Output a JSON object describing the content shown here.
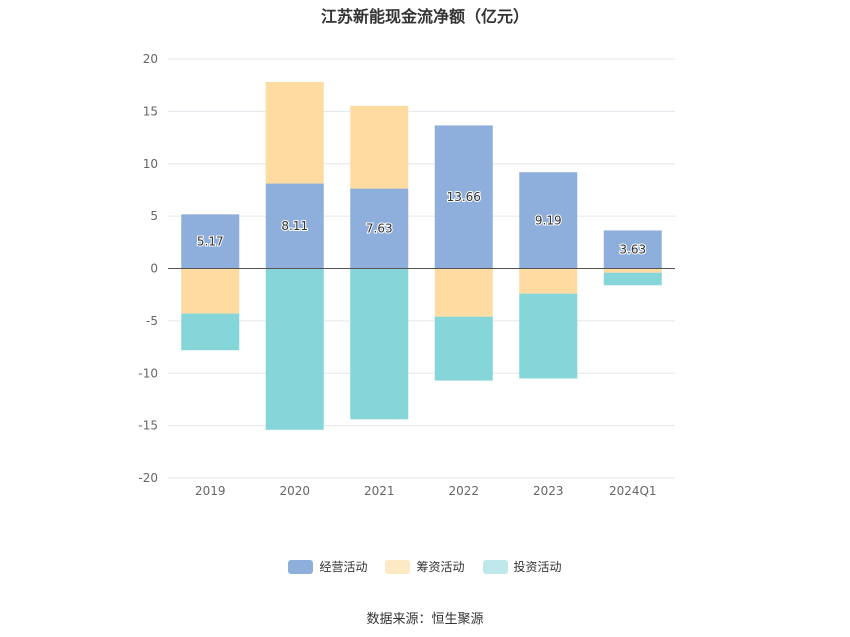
{
  "chart_data": {
    "type": "bar",
    "stacked": true,
    "title": "江苏新能现金流净额（亿元）",
    "categories": [
      "2019",
      "2020",
      "2021",
      "2022",
      "2023",
      "2024Q1"
    ],
    "series": [
      {
        "name": "经营活动",
        "color": "#8eaedc",
        "values": [
          5.17,
          8.11,
          7.63,
          13.66,
          9.19,
          3.63
        ],
        "labels": [
          "5.17",
          "8.11",
          "7.63",
          "13.66",
          "9.19",
          "3.63"
        ]
      },
      {
        "name": "筹资活动",
        "color": "#fedba1",
        "values": [
          -4.3,
          9.7,
          7.9,
          -4.6,
          -2.4,
          -0.4
        ]
      },
      {
        "name": "投资活动",
        "color": "#86d6d9",
        "values": [
          -3.5,
          -15.4,
          -14.4,
          -6.1,
          -8.1,
          -1.2
        ]
      }
    ],
    "ylim": [
      -20,
      20
    ],
    "yticks": [
      "20",
      "15",
      "10",
      "5",
      "0",
      "-5",
      "-10",
      "-15",
      "-20"
    ],
    "grid": true,
    "legend": "bottom"
  },
  "source": "数据来源：恒生聚源"
}
